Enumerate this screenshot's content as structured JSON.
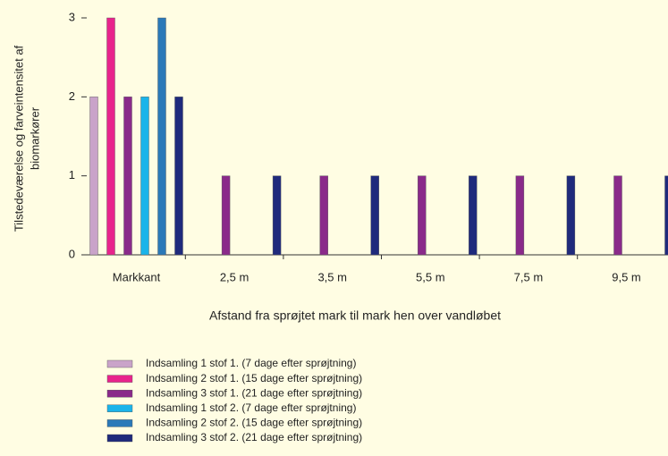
{
  "chart_data": {
    "type": "bar",
    "ylabel": [
      "Tilstedeværelse og farveintensitet af",
      "biomarkører"
    ],
    "xlabel": "Afstand fra sprøjtet mark til mark hen over vandløbet",
    "categories": [
      "Markkant",
      "2,5 m",
      "3,5 m",
      "5,5 m",
      "7,5 m",
      "9,5 m"
    ],
    "series": [
      {
        "name": "Indsamling 1 stof 1. (7 dage efter sprøjtning)",
        "color": "#c9a3c9",
        "values": [
          2,
          0,
          0,
          0,
          0,
          0
        ]
      },
      {
        "name": "Indsamling 2 stof 1. (15 dage efter sprøjtning)",
        "color": "#e8238c",
        "values": [
          3,
          0,
          0,
          0,
          0,
          0
        ]
      },
      {
        "name": "Indsamling 3 stof 1. (21 dage efter sprøjtning)",
        "color": "#8a2a8a",
        "values": [
          2,
          1,
          1,
          1,
          1,
          1
        ]
      },
      {
        "name": "Indsamling 1 stof 2. (7 dage efter sprøjtning)",
        "color": "#1ab4ea",
        "values": [
          2,
          0,
          0,
          0,
          0,
          0
        ]
      },
      {
        "name": "Indsamling 2 stof 2. (15 dage efter sprøjtning)",
        "color": "#2b79b8",
        "values": [
          3,
          0,
          0,
          0,
          0,
          0
        ]
      },
      {
        "name": "Indsamling 3 stof 2. (21 dage efter sprøjtning)",
        "color": "#1f2a7c",
        "values": [
          2,
          1,
          1,
          1,
          1,
          1
        ]
      }
    ],
    "ylim": [
      0,
      3
    ],
    "yticks": [
      0,
      1,
      2,
      3
    ],
    "grid": false
  }
}
